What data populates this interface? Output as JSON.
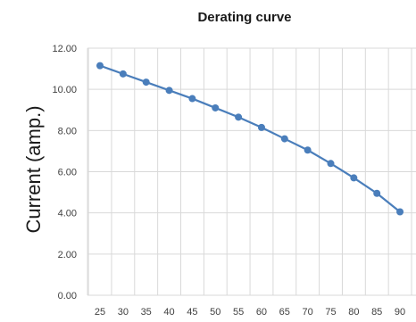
{
  "chart_data": {
    "type": "line",
    "title": "Derating curve",
    "xlabel": "",
    "ylabel": "Current (amp.)",
    "x": [
      25,
      30,
      35,
      40,
      45,
      50,
      55,
      60,
      65,
      70,
      75,
      80,
      85,
      90
    ],
    "x_tick_labels": [
      "25",
      "30",
      "35",
      "40",
      "45",
      "50",
      "55",
      "60",
      "65",
      "70",
      "75",
      "80",
      "85",
      "90"
    ],
    "ylim": [
      0,
      12
    ],
    "y_ticks": [
      0,
      2,
      4,
      6,
      8,
      10,
      12
    ],
    "y_tick_labels": [
      "0.00",
      "2.00",
      "4.00",
      "6.00",
      "8.00",
      "10.00",
      "12.00"
    ],
    "grid": true,
    "series": [
      {
        "values": [
          11.15,
          10.75,
          10.35,
          9.95,
          9.55,
          9.1,
          8.65,
          8.15,
          7.6,
          7.05,
          6.4,
          5.7,
          4.95,
          4.05
        ],
        "color": "#4a7ebb"
      }
    ]
  }
}
